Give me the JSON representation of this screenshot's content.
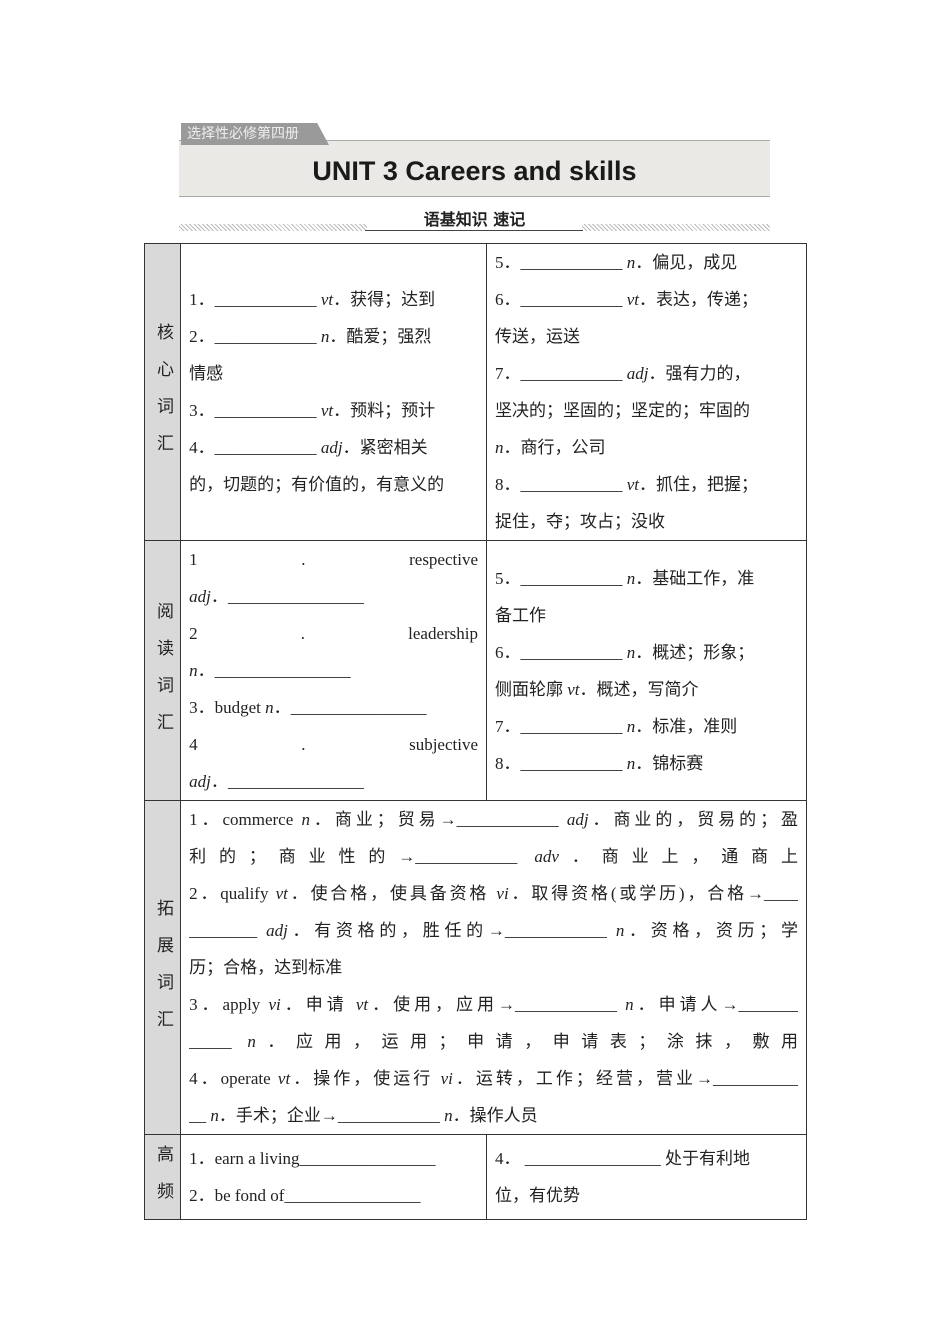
{
  "header": {
    "tag": "选择性必修第四册",
    "title": "UNIT 3  Careers and skills",
    "subtitle": "语基知识 速记"
  },
  "rows": [
    {
      "label": "核心词汇",
      "cells": [
        [
          [
            ""
          ],
          [
            "1．____________ ",
            {
              "i": "vt"
            },
            "．获得；达到"
          ],
          [
            "2．____________ ",
            {
              "i": "n"
            },
            "．酷爱；强烈"
          ],
          [
            "情感"
          ],
          [
            "3．____________ ",
            {
              "i": "vt"
            },
            "．预料；预计"
          ],
          [
            "4．____________ ",
            {
              "i": "adj"
            },
            "．紧密相关"
          ],
          [
            "的，切题的；有价值的，有意义的"
          ],
          [
            ""
          ]
        ],
        [
          [
            "5．____________ ",
            {
              "i": "n"
            },
            "．偏见，成见"
          ],
          [
            "6．____________ ",
            {
              "i": "vt"
            },
            "．表达，传递；"
          ],
          [
            "传送，运送"
          ],
          [
            "7．____________ ",
            {
              "i": "adj"
            },
            "．强有力的，"
          ],
          [
            "坚决的；坚固的；坚定的；牢固的"
          ],
          [
            {
              "i": "n"
            },
            "．商行，公司"
          ],
          [
            "8．____________ ",
            {
              "i": "vt"
            },
            "．抓住，把握；"
          ],
          [
            "捉住，夺；攻占；没收"
          ]
        ]
      ]
    },
    {
      "label": "阅读词汇",
      "cells": [
        [
          [
            "1 . respective"
          ],
          [
            {
              "i": "adj"
            },
            "．________________"
          ],
          [
            "2 . leadership"
          ],
          [
            {
              "i": "n"
            },
            "．________________"
          ],
          [
            "3．budget ",
            {
              "i": "n"
            },
            "．________________"
          ],
          [
            "4 . subjective"
          ],
          [
            {
              "i": "adj"
            },
            "．________________"
          ]
        ],
        [
          [
            "5．____________ ",
            {
              "i": "n"
            },
            "．基础工作，准"
          ],
          [
            "备工作"
          ],
          [
            "6．____________ ",
            {
              "i": "n"
            },
            "．概述；形象；"
          ],
          [
            "侧面轮廓 ",
            {
              "i": "vt"
            },
            "．概述，写简介"
          ],
          [
            "7．____________ ",
            {
              "i": "n"
            },
            "．标准，准则"
          ],
          [
            "8．____________ ",
            {
              "i": "n"
            },
            "．锦标赛"
          ]
        ]
      ]
    },
    {
      "label": "拓展词汇",
      "cells": [
        [
          [
            "1．commerce ",
            {
              "i": "n"
            },
            "．商业；贸易→____________ ",
            {
              "i": "adj"
            },
            "．商业的，贸易的；盈"
          ],
          [
            "利的；商业性的→____________ ",
            {
              "i": "adv"
            },
            "．商业上，通商上"
          ],
          [
            "2．qualify ",
            {
              "i": "vt"
            },
            "．使合格，使具备资格 ",
            {
              "i": "vi"
            },
            "．取得资格(或学历)，合格→____"
          ],
          [
            "________ ",
            {
              "i": "adj"
            },
            "．有资格的，胜任的→____________ ",
            {
              "i": "n"
            },
            "．资格，资历；学"
          ],
          [
            "历；合格，达到标准"
          ],
          [
            "3．apply ",
            {
              "i": "vi"
            },
            "．申请 ",
            {
              "i": "vt"
            },
            "．使用，应用→____________ ",
            {
              "i": "n"
            },
            "．申请人→_______"
          ],
          [
            "_____ ",
            {
              "i": "n"
            },
            "．应用，运用；申请，申请表；涂抹，敷用"
          ],
          [
            "4．operate ",
            {
              "i": "vt"
            },
            "．操作，使运行 ",
            {
              "i": "vi"
            },
            "．运转，工作；经营，营业→__________"
          ],
          [
            "__ ",
            {
              "i": "n"
            },
            "．手术；企业→____________ ",
            {
              "i": "n"
            },
            "．操作人员"
          ]
        ]
      ]
    },
    {
      "label": "高频",
      "cells": [
        [
          [
            "1．earn a living________________"
          ],
          [
            "2．be fond of________________"
          ]
        ],
        [
          [
            "4． ________________  处于有利地"
          ],
          [
            "位，有优势"
          ]
        ]
      ]
    }
  ]
}
